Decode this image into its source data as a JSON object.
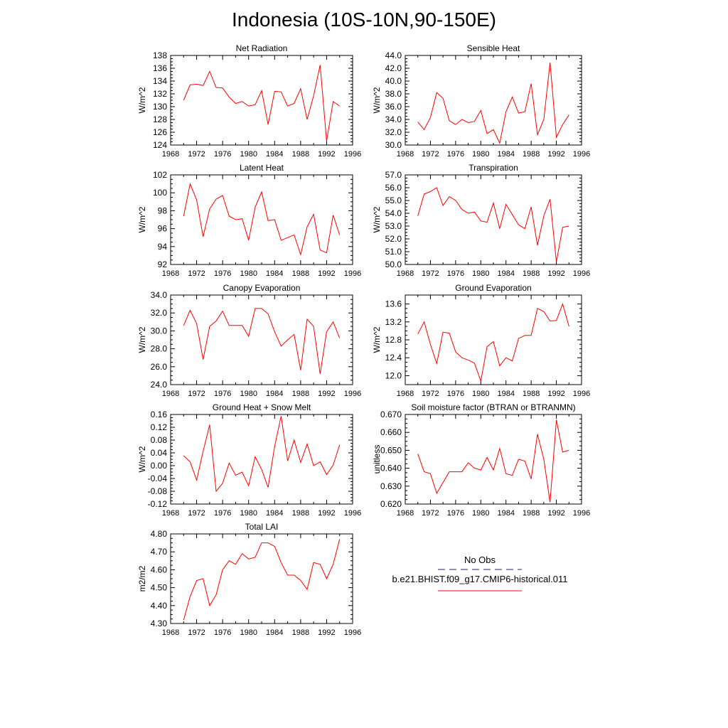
{
  "title": "Indonesia (10S-10N,90-150E)",
  "series_color": "#ff0000",
  "obs_color": "#1a237e",
  "legend": {
    "obs_label": "No Obs",
    "model_label": "b.e21.BHIST.f09_g17.CMIP6-historical.011"
  },
  "x_ticks": [
    "1968",
    "1972",
    "1976",
    "1980",
    "1984",
    "1988",
    "1992",
    "1996"
  ],
  "chart_data": [
    {
      "type": "line",
      "title": "Net Radiation",
      "ylabel": "W/m^2",
      "xlim": [
        1968,
        1996
      ],
      "ylim": [
        124,
        138
      ],
      "yticks": [
        "124",
        "126",
        "128",
        "130",
        "132",
        "134",
        "136",
        "138"
      ],
      "x": [
        1970,
        1971,
        1972,
        1973,
        1974,
        1975,
        1976,
        1977,
        1978,
        1979,
        1980,
        1981,
        1982,
        1983,
        1984,
        1985,
        1986,
        1987,
        1988,
        1989,
        1990,
        1991,
        1992,
        1993,
        1994
      ],
      "series": [
        {
          "values": [
            131.0,
            133.4,
            133.5,
            133.3,
            135.5,
            133.0,
            132.9,
            131.5,
            130.5,
            130.8,
            130.1,
            130.3,
            132.5,
            127.2,
            132.4,
            132.3,
            130.1,
            130.5,
            132.8,
            128.0,
            131.7,
            136.5,
            124.6,
            130.8,
            130.1
          ]
        }
      ]
    },
    {
      "type": "line",
      "title": "Sensible Heat",
      "ylabel": "W/m^2",
      "xlim": [
        1968,
        1996
      ],
      "ylim": [
        30,
        44
      ],
      "yticks": [
        "30.0",
        "32.0",
        "34.0",
        "36.0",
        "38.0",
        "40.0",
        "42.0",
        "44.0"
      ],
      "x": [
        1970,
        1971,
        1972,
        1973,
        1974,
        1975,
        1976,
        1977,
        1978,
        1979,
        1980,
        1981,
        1982,
        1983,
        1984,
        1985,
        1986,
        1987,
        1988,
        1989,
        1990,
        1991,
        1992,
        1993,
        1994
      ],
      "series": [
        {
          "values": [
            33.6,
            32.4,
            34.3,
            38.2,
            37.3,
            33.8,
            33.2,
            34.0,
            33.5,
            33.7,
            35.4,
            31.8,
            32.4,
            30.3,
            35.2,
            37.5,
            35.0,
            35.2,
            39.6,
            31.6,
            34.0,
            42.9,
            31.2,
            33.2,
            34.7
          ]
        }
      ]
    },
    {
      "type": "line",
      "title": "Latent Heat",
      "ylabel": "W/m^2",
      "xlim": [
        1968,
        1996
      ],
      "ylim": [
        92,
        102
      ],
      "yticks": [
        "92",
        "94",
        "96",
        "98",
        "100",
        "102"
      ],
      "x": [
        1970,
        1971,
        1972,
        1973,
        1974,
        1975,
        1976,
        1977,
        1978,
        1979,
        1980,
        1981,
        1982,
        1983,
        1984,
        1985,
        1986,
        1987,
        1988,
        1989,
        1990,
        1991,
        1992,
        1993,
        1994
      ],
      "series": [
        {
          "values": [
            97.4,
            101.0,
            99.2,
            95.1,
            98.2,
            99.3,
            99.7,
            97.4,
            97.0,
            97.1,
            94.7,
            98.4,
            100.1,
            96.9,
            97.0,
            94.7,
            95.0,
            95.3,
            93.1,
            96.2,
            97.6,
            93.6,
            93.3,
            97.5,
            95.3
          ]
        }
      ]
    },
    {
      "type": "line",
      "title": "Transpiration",
      "ylabel": "W/m^2",
      "xlim": [
        1968,
        1996
      ],
      "ylim": [
        50,
        57
      ],
      "yticks": [
        "50.0",
        "51.0",
        "52.0",
        "53.0",
        "54.0",
        "55.0",
        "56.0",
        "57.0"
      ],
      "x": [
        1970,
        1971,
        1972,
        1973,
        1974,
        1975,
        1976,
        1977,
        1978,
        1979,
        1980,
        1981,
        1982,
        1983,
        1984,
        1985,
        1986,
        1987,
        1988,
        1989,
        1990,
        1991,
        1992,
        1993,
        1994
      ],
      "series": [
        {
          "values": [
            53.8,
            55.5,
            55.7,
            56.0,
            54.6,
            55.3,
            55.0,
            54.3,
            54.0,
            54.1,
            53.4,
            53.3,
            54.8,
            52.8,
            54.7,
            53.9,
            53.1,
            52.8,
            54.5,
            51.5,
            53.8,
            55.1,
            50.2,
            52.9,
            53.0
          ]
        }
      ]
    },
    {
      "type": "line",
      "title": "Canopy Evaporation",
      "ylabel": "W/m^2",
      "xlim": [
        1968,
        1996
      ],
      "ylim": [
        24,
        34
      ],
      "yticks": [
        "24.0",
        "26.0",
        "28.0",
        "30.0",
        "32.0",
        "34.0"
      ],
      "x": [
        1970,
        1971,
        1972,
        1973,
        1974,
        1975,
        1976,
        1977,
        1978,
        1979,
        1980,
        1981,
        1982,
        1983,
        1984,
        1985,
        1986,
        1987,
        1988,
        1989,
        1990,
        1991,
        1992,
        1993,
        1994
      ],
      "series": [
        {
          "values": [
            30.6,
            32.3,
            30.8,
            26.8,
            30.5,
            31.1,
            32.2,
            30.6,
            30.6,
            30.6,
            29.4,
            32.5,
            32.5,
            31.9,
            29.9,
            28.3,
            29.0,
            29.6,
            25.6,
            31.3,
            30.5,
            25.2,
            29.9,
            31.0,
            29.2
          ]
        }
      ]
    },
    {
      "type": "line",
      "title": "Ground Evaporation",
      "ylabel": "W/m^2",
      "xlim": [
        1968,
        1996
      ],
      "ylim": [
        11.8,
        13.8
      ],
      "yticks": [
        "12.0",
        "12.4",
        "12.8",
        "13.2",
        "13.6"
      ],
      "x": [
        1970,
        1971,
        1972,
        1973,
        1974,
        1975,
        1976,
        1977,
        1978,
        1979,
        1980,
        1981,
        1982,
        1983,
        1984,
        1985,
        1986,
        1987,
        1988,
        1989,
        1990,
        1991,
        1992,
        1993,
        1994
      ],
      "series": [
        {
          "values": [
            12.93,
            13.2,
            12.7,
            12.27,
            12.97,
            12.95,
            12.53,
            12.4,
            12.35,
            12.28,
            11.88,
            12.65,
            12.76,
            12.22,
            12.4,
            12.33,
            12.83,
            12.9,
            12.9,
            13.5,
            13.43,
            13.22,
            13.23,
            13.6,
            13.1
          ]
        }
      ]
    },
    {
      "type": "line",
      "title": "Ground Heat + Snow Melt",
      "ylabel": "W/m^2",
      "xlim": [
        1968,
        1996
      ],
      "ylim": [
        -0.12,
        0.16
      ],
      "yticks": [
        "-0.12",
        "-0.08",
        "-0.04",
        "0.00",
        "0.04",
        "0.08",
        "0.12",
        "0.16"
      ],
      "x": [
        1970,
        1971,
        1972,
        1973,
        1974,
        1975,
        1976,
        1977,
        1978,
        1979,
        1980,
        1981,
        1982,
        1983,
        1984,
        1985,
        1986,
        1987,
        1988,
        1989,
        1990,
        1991,
        1992,
        1993,
        1994
      ],
      "series": [
        {
          "values": [
            0.031,
            0.012,
            -0.045,
            0.045,
            0.128,
            -0.08,
            -0.055,
            0.008,
            -0.03,
            -0.02,
            -0.063,
            0.028,
            -0.012,
            -0.068,
            0.06,
            0.155,
            0.015,
            0.08,
            0.01,
            0.068,
            0.0,
            0.012,
            -0.028,
            0.002,
            0.065
          ]
        }
      ]
    },
    {
      "type": "line",
      "title": "Soil moisture factor (BTRAN or BTRANMN)",
      "ylabel": "unitless",
      "xlim": [
        1968,
        1996
      ],
      "ylim": [
        0.62,
        0.67
      ],
      "yticks": [
        "0.620",
        "0.630",
        "0.640",
        "0.650",
        "0.660",
        "0.670"
      ],
      "x": [
        1970,
        1971,
        1972,
        1973,
        1974,
        1975,
        1976,
        1977,
        1978,
        1979,
        1980,
        1981,
        1982,
        1983,
        1984,
        1985,
        1986,
        1987,
        1988,
        1989,
        1990,
        1991,
        1992,
        1993,
        1994
      ],
      "series": [
        {
          "values": [
            0.648,
            0.638,
            0.637,
            0.626,
            0.632,
            0.638,
            0.638,
            0.638,
            0.643,
            0.64,
            0.639,
            0.646,
            0.639,
            0.651,
            0.637,
            0.636,
            0.645,
            0.644,
            0.634,
            0.659,
            0.645,
            0.621,
            0.667,
            0.649,
            0.65
          ]
        }
      ]
    },
    {
      "type": "line",
      "title": "Total LAI",
      "ylabel": "m2/m2",
      "xlim": [
        1968,
        1996
      ],
      "ylim": [
        4.3,
        4.8
      ],
      "yticks": [
        "4.30",
        "4.40",
        "4.50",
        "4.60",
        "4.70",
        "4.80"
      ],
      "x": [
        1970,
        1971,
        1972,
        1973,
        1974,
        1975,
        1976,
        1977,
        1978,
        1979,
        1980,
        1981,
        1982,
        1983,
        1984,
        1985,
        1986,
        1987,
        1988,
        1989,
        1990,
        1991,
        1992,
        1993,
        1994
      ],
      "series": [
        {
          "values": [
            4.32,
            4.45,
            4.54,
            4.55,
            4.4,
            4.46,
            4.6,
            4.65,
            4.63,
            4.69,
            4.66,
            4.67,
            4.75,
            4.75,
            4.73,
            4.64,
            4.57,
            4.57,
            4.54,
            4.49,
            4.64,
            4.63,
            4.55,
            4.63,
            4.77
          ]
        }
      ]
    }
  ]
}
